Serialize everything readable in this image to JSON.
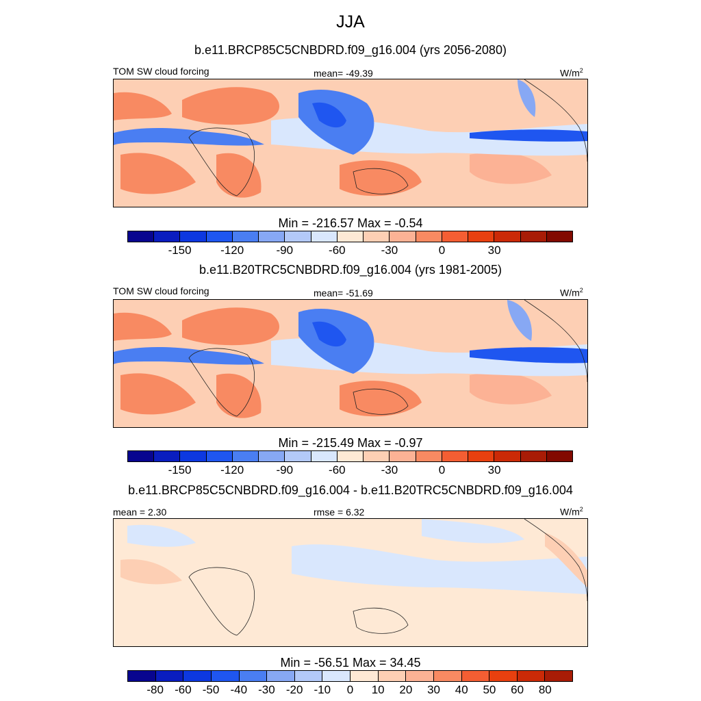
{
  "season": "JJA",
  "panels": [
    {
      "title": "b.e11.BRCP85C5CNBDRD.f09_g16.004 (yrs 2056-2080)",
      "left": "TOM SW cloud forcing",
      "center": "mean= -49.39",
      "units": "W/m",
      "units_sup": "2",
      "minmax": "Min = -216.57 Max =  -0.54"
    },
    {
      "title": "b.e11.B20TRC5CNBDRD.f09_g16.004 (yrs 1981-2005)",
      "left": "TOM SW cloud forcing",
      "center": "mean= -51.69",
      "units": "W/m",
      "units_sup": "2",
      "minmax": "Min = -215.49 Max =  -0.97"
    },
    {
      "title": "b.e11.BRCP85C5CNBDRD.f09_g16.004 - b.e11.B20TRC5CNBDRD.f09_g16.004",
      "left": "mean =   2.30",
      "center": "rmse =   6.32",
      "units": "W/m",
      "units_sup": "2",
      "minmax": "Min = -56.51 Max =  34.45"
    }
  ],
  "colorbars": {
    "field": {
      "colors": [
        "#08058f",
        "#0a1dbf",
        "#0d38e0",
        "#1f56f0",
        "#4a7ef2",
        "#87a8f4",
        "#b3c9f8",
        "#d9e7fd",
        "#fee9d5",
        "#fdcfb4",
        "#fcb295",
        "#f88a62",
        "#f45e33",
        "#e8400f",
        "#cb2a07",
        "#a81c06",
        "#820a00"
      ],
      "tick_labels": [
        "-150",
        "-120",
        "-90",
        "-60",
        "-30",
        "0",
        "30"
      ],
      "tick_boundaries": [
        2,
        4,
        6,
        8,
        10,
        12,
        14
      ]
    },
    "diff": {
      "colors": [
        "#08058f",
        "#0a1dbf",
        "#0d38e0",
        "#1f56f0",
        "#4a7ef2",
        "#87a8f4",
        "#b3c9f8",
        "#d9e7fd",
        "#fee9d5",
        "#fdcfb4",
        "#fcb295",
        "#f88a62",
        "#f45e33",
        "#e8400f",
        "#cb2a07",
        "#a81c06"
      ],
      "tick_labels": [
        "-80",
        "-60",
        "-50",
        "-40",
        "-30",
        "-20",
        "-10",
        "0",
        "10",
        "20",
        "30",
        "40",
        "50",
        "60",
        "80"
      ],
      "tick_boundaries": [
        1,
        2,
        3,
        4,
        5,
        6,
        7,
        8,
        9,
        10,
        11,
        12,
        13,
        14,
        15
      ]
    }
  },
  "map_colors": {
    "deep_blue": "#1f56f0",
    "mid_blue": "#4a7ef2",
    "light_blue": "#87a8f4",
    "pale_blue": "#d9e7fd",
    "pale_peach": "#fee9d5",
    "light_orange": "#fdcfb4",
    "orange": "#fcb295",
    "strong_orange": "#f88a62",
    "red_orange": "#f45e33"
  }
}
